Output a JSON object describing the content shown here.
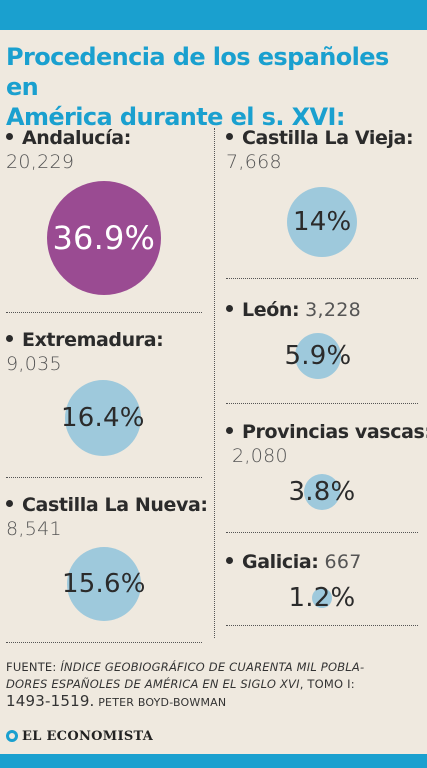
{
  "header": {
    "title_line1": "Procedencia de los españoles en",
    "title_line2": "América durante el s. XVI:"
  },
  "colors": {
    "accent": "#1aa0cf",
    "highlight_circle": "#9a4b92",
    "circle": "#9ec9dc",
    "background": "#efe9df"
  },
  "chart_data": {
    "type": "bubble",
    "title": "Procedencia de los españoles en América durante el s. XVI:",
    "series": [
      {
        "name": "Andalucía",
        "count": "20,229",
        "value": 36.9,
        "label": "36.9%"
      },
      {
        "name": "Extremadura",
        "count": "9,035",
        "value": 16.4,
        "label": "16.4%"
      },
      {
        "name": "Castilla La Nueva",
        "count": "8,541",
        "value": 15.6,
        "label": "15.6%"
      },
      {
        "name": "Castilla La Vieja",
        "count": "7,668",
        "value": 14,
        "label": "14%"
      },
      {
        "name": "León",
        "count": "3,228",
        "value": 5.9,
        "label": "5.9%"
      },
      {
        "name": "Provincias vascas",
        "count": "2,080",
        "value": 3.8,
        "label": "3.8%"
      },
      {
        "name": "Galicia",
        "count": "667",
        "value": 1.2,
        "label": "1.2%"
      }
    ]
  },
  "labels": {
    "andalucia": "Andalucía:",
    "extremadura": "Extremadura:",
    "castilla_nueva": "Castilla La Nueva:",
    "castilla_vieja": "Castilla La Vieja:",
    "leon": "León:",
    "provincias_vascas": "Provincias vascas:",
    "galicia": "Galicia:"
  },
  "source": {
    "prefix": "FUENTE: ",
    "work_line1": "ÍNDICE GEOBIOGRÁFICO DE CUARENTA MIL POBLA-",
    "work_line2": "DORES ESPAÑOLES DE AMÉRICA EN EL SIGLO XVI",
    "tomo": ", TOMO I:",
    "years": "1493-1519.",
    "author": " PETER BOYD-BOWMAN"
  },
  "logo": {
    "text": "EL ECONOMISTA"
  }
}
